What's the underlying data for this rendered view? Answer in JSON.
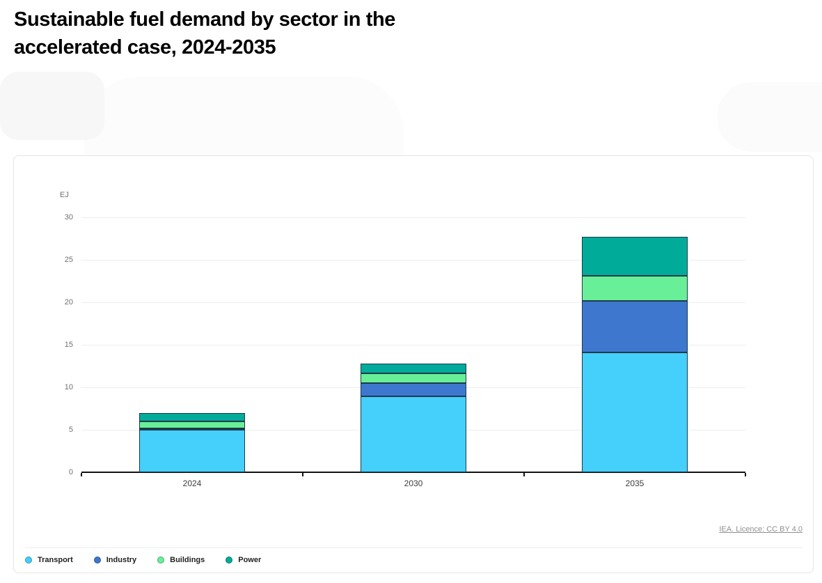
{
  "page": {
    "title": "Sustainable fuel demand by sector in the\naccelerated case, 2024-2035"
  },
  "chart": {
    "unit_label": "EJ",
    "source_link": "IEA. Licence: CC BY 4.0"
  },
  "chart_data": {
    "type": "bar",
    "stacked": true,
    "title": "Sustainable fuel demand by sector in the accelerated case, 2024-2035",
    "categories": [
      "2024",
      "2030",
      "2035"
    ],
    "series": [
      {
        "name": "Transport",
        "color": "#45cffb",
        "values": [
          5.0,
          8.9,
          14.1
        ]
      },
      {
        "name": "Industry",
        "color": "#3d77ce",
        "values": [
          0.2,
          1.6,
          6.1
        ]
      },
      {
        "name": "Buildings",
        "color": "#69ef97",
        "values": [
          0.75,
          1.1,
          2.9
        ]
      },
      {
        "name": "Power",
        "color": "#00ab9a",
        "values": [
          1.0,
          1.2,
          4.6
        ]
      }
    ],
    "totals": [
      6.95,
      12.8,
      27.7
    ],
    "xlabel": "",
    "ylabel": "EJ",
    "ylim": [
      0,
      30
    ],
    "ytick_interval": 5,
    "grid": true,
    "legend_position": "bottom-left",
    "bar_border_color": "#1b3a4a",
    "source": "IEA. Licence: CC BY 4.0"
  }
}
